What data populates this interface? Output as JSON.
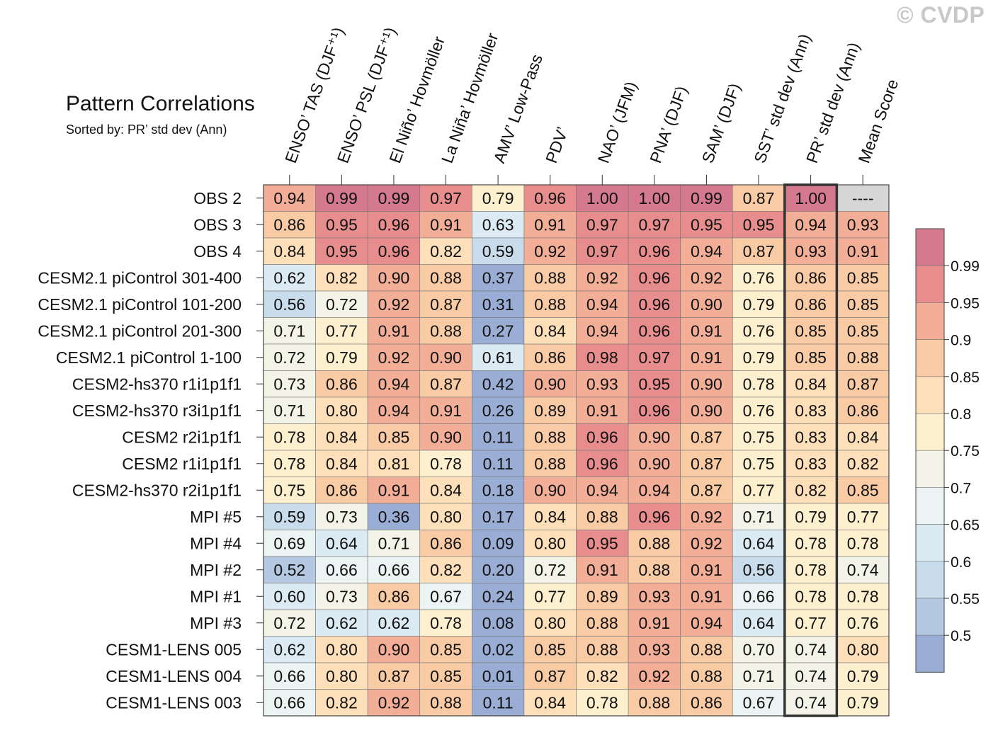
{
  "title": "Pattern Correlations",
  "subtitle": "Sorted by: PR’ std dev (Ann)",
  "copyright": "© CVDP",
  "chart_data": {
    "type": "heatmap",
    "title": "Pattern Correlations",
    "subtitle": "Sorted by: PR’ std dev (Ann)",
    "columns": [
      "ENSO’ TAS (DJF⁺¹)",
      "ENSO’ PSL (DJF⁺¹)",
      "El Niño’ Hovmöller",
      "La Niña’ Hovmöller",
      "AMV’ Low-Pass",
      "PDV’",
      "NAO’ (JFM)",
      "PNA’ (DJF)",
      "SAM’ (DJF)",
      "SST’ std dev (Ann)",
      "PR’ std dev (Ann)",
      "Mean Score"
    ],
    "rows": [
      "OBS 2",
      "OBS 3",
      "OBS 4",
      "CESM2.1 piControl 301-400",
      "CESM2.1 piControl 101-200",
      "CESM2.1 piControl 201-300",
      "CESM2.1 piControl 1-100",
      "CESM2-hs370 r1i1p1f1",
      "CESM2-hs370 r3i1p1f1",
      "CESM2 r2i1p1f1",
      "CESM2 r1i1p1f1",
      "CESM2-hs370 r2i1p1f1",
      "MPI #5",
      "MPI #4",
      "MPI #2",
      "MPI #1",
      "MPI #3",
      "CESM1-LENS 005",
      "CESM1-LENS 004",
      "CESM1-LENS 003"
    ],
    "values": [
      [
        "0.94",
        "0.99",
        "0.99",
        "0.97",
        "0.79",
        "0.96",
        "1.00",
        "1.00",
        "0.99",
        "0.87",
        "1.00",
        "----"
      ],
      [
        "0.86",
        "0.95",
        "0.96",
        "0.91",
        "0.63",
        "0.91",
        "0.97",
        "0.97",
        "0.95",
        "0.95",
        "0.94",
        "0.93"
      ],
      [
        "0.84",
        "0.95",
        "0.96",
        "0.82",
        "0.59",
        "0.92",
        "0.97",
        "0.96",
        "0.94",
        "0.87",
        "0.93",
        "0.91"
      ],
      [
        "0.62",
        "0.82",
        "0.90",
        "0.88",
        "0.37",
        "0.88",
        "0.92",
        "0.96",
        "0.92",
        "0.76",
        "0.86",
        "0.85"
      ],
      [
        "0.56",
        "0.72",
        "0.92",
        "0.87",
        "0.31",
        "0.88",
        "0.94",
        "0.96",
        "0.90",
        "0.79",
        "0.86",
        "0.85"
      ],
      [
        "0.71",
        "0.77",
        "0.91",
        "0.88",
        "0.27",
        "0.84",
        "0.94",
        "0.96",
        "0.91",
        "0.76",
        "0.85",
        "0.85"
      ],
      [
        "0.72",
        "0.79",
        "0.92",
        "0.90",
        "0.61",
        "0.86",
        "0.98",
        "0.97",
        "0.91",
        "0.79",
        "0.85",
        "0.88"
      ],
      [
        "0.73",
        "0.86",
        "0.94",
        "0.87",
        "0.42",
        "0.90",
        "0.93",
        "0.95",
        "0.90",
        "0.78",
        "0.84",
        "0.87"
      ],
      [
        "0.71",
        "0.80",
        "0.94",
        "0.91",
        "0.26",
        "0.89",
        "0.91",
        "0.96",
        "0.90",
        "0.76",
        "0.83",
        "0.86"
      ],
      [
        "0.78",
        "0.84",
        "0.85",
        "0.90",
        "0.11",
        "0.88",
        "0.96",
        "0.90",
        "0.87",
        "0.75",
        "0.83",
        "0.84"
      ],
      [
        "0.78",
        "0.84",
        "0.81",
        "0.78",
        "0.11",
        "0.88",
        "0.96",
        "0.90",
        "0.87",
        "0.75",
        "0.83",
        "0.82"
      ],
      [
        "0.75",
        "0.86",
        "0.91",
        "0.84",
        "0.18",
        "0.90",
        "0.94",
        "0.94",
        "0.87",
        "0.77",
        "0.82",
        "0.85"
      ],
      [
        "0.59",
        "0.73",
        "0.36",
        "0.80",
        "0.17",
        "0.84",
        "0.88",
        "0.96",
        "0.92",
        "0.71",
        "0.79",
        "0.77"
      ],
      [
        "0.69",
        "0.64",
        "0.71",
        "0.86",
        "0.09",
        "0.80",
        "0.95",
        "0.88",
        "0.92",
        "0.64",
        "0.78",
        "0.78"
      ],
      [
        "0.52",
        "0.66",
        "0.66",
        "0.82",
        "0.20",
        "0.72",
        "0.91",
        "0.88",
        "0.91",
        "0.56",
        "0.78",
        "0.74"
      ],
      [
        "0.60",
        "0.73",
        "0.86",
        "0.67",
        "0.24",
        "0.77",
        "0.89",
        "0.93",
        "0.91",
        "0.66",
        "0.78",
        "0.78"
      ],
      [
        "0.72",
        "0.62",
        "0.62",
        "0.78",
        "0.08",
        "0.80",
        "0.88",
        "0.91",
        "0.94",
        "0.64",
        "0.77",
        "0.76"
      ],
      [
        "0.62",
        "0.80",
        "0.90",
        "0.85",
        "0.02",
        "0.85",
        "0.88",
        "0.93",
        "0.88",
        "0.70",
        "0.74",
        "0.80"
      ],
      [
        "0.66",
        "0.80",
        "0.87",
        "0.85",
        "0.01",
        "0.87",
        "0.82",
        "0.92",
        "0.88",
        "0.71",
        "0.74",
        "0.79"
      ],
      [
        "0.66",
        "0.82",
        "0.92",
        "0.88",
        "0.11",
        "0.84",
        "0.78",
        "0.88",
        "0.86",
        "0.67",
        "0.74",
        "0.79"
      ]
    ],
    "highlighted_column": "PR’ std dev (Ann)",
    "missing_color": "#d6d6d6",
    "colorbar": {
      "labels": [
        "0.99",
        "0.95",
        "0.9",
        "0.85",
        "0.8",
        "0.75",
        "0.7",
        "0.65",
        "0.6",
        "0.55",
        "0.5"
      ],
      "thresholds": [
        0.5,
        0.55,
        0.6,
        0.65,
        0.7,
        0.75,
        0.8,
        0.85,
        0.9,
        0.95,
        0.99
      ],
      "colors": [
        "#9aadd4",
        "#b4c8e2",
        "#c9dcec",
        "#dcebf3",
        "#ebf3f3",
        "#f3f3e7",
        "#fdf0cf",
        "#fde0b9",
        "#f8cba5",
        "#f3ae97",
        "#e78d8d",
        "#d57a8e"
      ]
    }
  }
}
